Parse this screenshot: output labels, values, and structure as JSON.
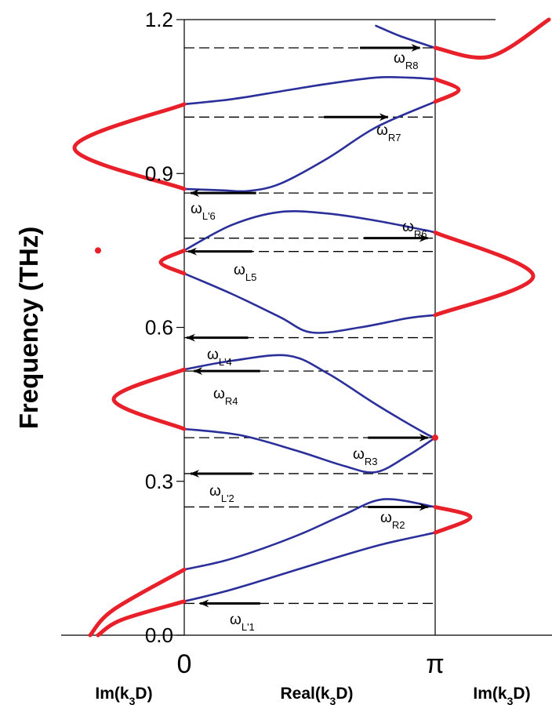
{
  "chart_data": {
    "type": "line",
    "ylabel": "Frequency (THz)",
    "ylim": [
      0.0,
      1.2
    ],
    "y_ticks": [
      "0.0",
      "0.3",
      "0.6",
      "0.9",
      "1.2"
    ],
    "y_tick_values": [
      0.0,
      0.3,
      0.6,
      0.9,
      1.2
    ],
    "x_ticks": [
      "0",
      "π"
    ],
    "x_panels": [
      "Im(k3D)",
      "Real(k3D)",
      "Im(k3D)"
    ],
    "x_labels": {
      "left": {
        "pre": "Im(k",
        "sub": "3",
        "post": "D)"
      },
      "middle": {
        "pre": "Real(k",
        "sub": "3",
        "post": "D)"
      },
      "right": {
        "pre": "Im(k",
        "sub": "3",
        "post": "D)"
      }
    },
    "colors": {
      "real_branch": "#2b2f9a",
      "imag_branch": "#e8202a",
      "dashed": "#000000"
    },
    "real_branches": [
      {
        "k": [
          0,
          0.5,
          1.0,
          1.5,
          2.0,
          2.5,
          3.1416
        ],
        "freq": [
          0.066,
          0.085,
          0.108,
          0.132,
          0.156,
          0.178,
          0.2
        ]
      },
      {
        "k": [
          0,
          0.5,
          1.0,
          1.5,
          2.0,
          2.5,
          3.1416
        ],
        "freq": [
          0.128,
          0.145,
          0.17,
          0.2,
          0.235,
          0.265,
          0.25
        ]
      },
      {
        "k": [
          0,
          0.7,
          1.4,
          2.0,
          2.4,
          2.8,
          3.1416
        ],
        "freq": [
          0.402,
          0.39,
          0.36,
          0.33,
          0.318,
          0.35,
          0.385
        ]
      },
      {
        "k": [
          0,
          0.6,
          1.3,
          1.8,
          2.4,
          3.0,
          3.1416
        ],
        "freq": [
          0.518,
          0.535,
          0.545,
          0.51,
          0.45,
          0.395,
          0.385
        ]
      },
      {
        "k": [
          0,
          0.6,
          1.2,
          1.6,
          2.2,
          2.8,
          3.1416
        ],
        "freq": [
          0.705,
          0.665,
          0.62,
          0.59,
          0.6,
          0.618,
          0.624
        ]
      },
      {
        "k": [
          0,
          0.6,
          1.2,
          1.8,
          2.4,
          3.0,
          3.1416
        ],
        "freq": [
          0.75,
          0.8,
          0.825,
          0.822,
          0.808,
          0.79,
          0.785
        ]
      },
      {
        "k": [
          0,
          0.5,
          0.8,
          1.2,
          1.8,
          2.4,
          3.1416
        ],
        "freq": [
          0.87,
          0.867,
          0.866,
          0.88,
          0.93,
          0.99,
          1.04
        ]
      },
      {
        "k": [
          0,
          0.6,
          1.2,
          1.8,
          2.4,
          2.8,
          3.1416
        ],
        "freq": [
          1.035,
          1.045,
          1.06,
          1.075,
          1.087,
          1.087,
          1.084
        ]
      },
      {
        "k": [
          2.4,
          2.7,
          3.1416
        ],
        "freq": [
          1.188,
          1.168,
          1.145
        ]
      }
    ],
    "imag_branches": [
      {
        "side": "left",
        "freq": [
          0.0,
          0.03,
          0.066
        ],
        "im": [
          1.1,
          0.8,
          0.0
        ]
      },
      {
        "side": "left",
        "freq": [
          0.0,
          0.05,
          0.128
        ],
        "im": [
          1.2,
          0.9,
          0.0
        ]
      },
      {
        "side": "left",
        "freq": [
          0.402,
          0.46,
          0.518
        ],
        "im": [
          0.0,
          0.9,
          0.0
        ]
      },
      {
        "side": "left",
        "freq": [
          0.705,
          0.727,
          0.75
        ],
        "im": [
          0.0,
          0.3,
          0.0
        ]
      },
      {
        "side": "left",
        "freq": [
          0.87,
          0.95,
          1.035
        ],
        "im": [
          0.0,
          1.4,
          0.0
        ]
      },
      {
        "side": "right",
        "freq": [
          0.2,
          0.23,
          0.25
        ],
        "im": [
          0.0,
          0.45,
          0.0
        ]
      },
      {
        "side": "right",
        "freq": [
          0.624,
          0.7,
          0.785
        ],
        "im": [
          0.0,
          1.25,
          0.0
        ]
      },
      {
        "side": "right",
        "freq": [
          1.04,
          1.063,
          1.084
        ],
        "im": [
          0.0,
          0.3,
          0.0
        ]
      },
      {
        "side": "right",
        "freq": [
          1.145,
          1.128,
          1.2
        ],
        "im": [
          0.0,
          0.7,
          1.45
        ]
      }
    ],
    "isolated_points": [
      {
        "side": "left",
        "freq": 0.75,
        "im": 1.1
      },
      {
        "side": "right",
        "freq": 0.385,
        "im": 0.0
      }
    ],
    "dashed_levels": [
      1.145,
      1.01,
      0.862,
      0.774,
      0.748,
      0.58,
      0.515,
      0.385,
      0.315,
      0.25,
      0.062
    ],
    "annotations": [
      {
        "id": "wR8",
        "base": "ω",
        "sub": "R8",
        "freq": 1.145,
        "dir": "right",
        "k_from": 2.2,
        "k_to": 2.95
      },
      {
        "id": "wR7",
        "base": "ω",
        "sub": "R7",
        "freq": 1.01,
        "dir": "right",
        "k_from": 1.75,
        "k_to": 2.55
      },
      {
        "id": "wL6",
        "base": "ω",
        "sub": "L'6",
        "freq": 0.862,
        "dir": "left",
        "k_from": 0.9,
        "k_to": 0.08
      },
      {
        "id": "wR6",
        "base": "ω",
        "sub": "R6",
        "freq": 0.774,
        "dir": "right",
        "k_from": 2.25,
        "k_to": 3.05
      },
      {
        "id": "wL5",
        "base": "ω",
        "sub": "L5",
        "freq": 0.748,
        "dir": "left",
        "k_from": 0.85,
        "k_to": 0.05
      },
      {
        "id": "wL4",
        "base": "ω",
        "sub": "L'4",
        "freq": 0.58,
        "dir": "left",
        "k_from": 0.8,
        "k_to": 0.03
      },
      {
        "id": "wR4",
        "base": "ω",
        "sub": "R4",
        "freq": 0.515,
        "dir": "left",
        "k_from": 0.95,
        "k_to": 0.12
      },
      {
        "id": "wR3",
        "base": "ω",
        "sub": "R3",
        "freq": 0.385,
        "dir": "right",
        "k_from": 2.3,
        "k_to": 3.05
      },
      {
        "id": "wL2",
        "base": "ω",
        "sub": "L'2",
        "freq": 0.315,
        "dir": "left",
        "k_from": 0.85,
        "k_to": 0.08
      },
      {
        "id": "wR2",
        "base": "ω",
        "sub": "R2",
        "freq": 0.25,
        "dir": "right",
        "k_from": 2.3,
        "k_to": 3.05
      },
      {
        "id": "wL1",
        "base": "ω",
        "sub": "L'1",
        "freq": 0.062,
        "dir": "left",
        "k_from": 0.95,
        "k_to": 0.2
      }
    ]
  }
}
